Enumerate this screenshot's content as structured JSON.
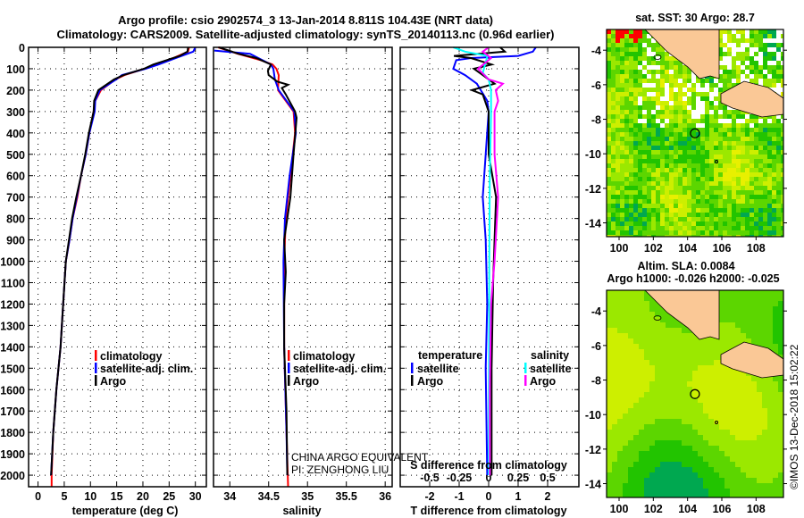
{
  "title": {
    "line1": "Argo profile: csio 2902574_3 13-Jan-2014 8.811S 104.43E (NRT data)",
    "line2": "Climatology: CARS2009. Satellite-adjusted climatology: synTS_20140113.nc (0.96d earlier)"
  },
  "depth_axis": {
    "ticks": [
      0,
      100,
      200,
      300,
      400,
      500,
      600,
      700,
      800,
      900,
      1000,
      1100,
      1200,
      1300,
      1400,
      1500,
      1600,
      1700,
      1800,
      1900,
      2000
    ],
    "ylim": [
      0,
      2054
    ]
  },
  "chart_data": [
    {
      "type": "line",
      "id": "temperature",
      "xlabel": "temperature (deg C)",
      "ylabel": "depth",
      "xlim": [
        -1.8,
        32.1
      ],
      "xticks": [
        0,
        5,
        10,
        15,
        20,
        25,
        30
      ],
      "xtick_labels": [
        "0",
        "5",
        "10",
        "15",
        "20",
        "25",
        "30"
      ],
      "grid": true,
      "legend": [
        {
          "label": "climatology",
          "color": "#ff0000"
        },
        {
          "label": "satellite-adj. clim.",
          "color": "#0000ff"
        },
        {
          "label": "Argo",
          "color": "#000000"
        }
      ],
      "series": [
        {
          "name": "climatology",
          "color": "#ff0000",
          "points": [
            [
              0,
              28.8
            ],
            [
              20,
              28.6
            ],
            [
              50,
              25.8
            ],
            [
              80,
              22.5
            ],
            [
              100,
              20.3
            ],
            [
              130,
              16.5
            ],
            [
              150,
              14.8
            ],
            [
              200,
              12.0
            ],
            [
              250,
              10.9
            ],
            [
              300,
              10.6
            ],
            [
              400,
              9.8
            ],
            [
              500,
              9.1
            ],
            [
              600,
              8.2
            ],
            [
              700,
              7.5
            ],
            [
              800,
              6.6
            ],
            [
              900,
              6.0
            ],
            [
              1000,
              5.3
            ],
            [
              1200,
              4.8
            ],
            [
              1400,
              4.3
            ],
            [
              1600,
              3.5
            ],
            [
              1800,
              2.9
            ],
            [
              2000,
              2.6
            ],
            [
              2054,
              2.6
            ]
          ]
        },
        {
          "name": "satellite-adj. clim.",
          "color": "#0000ff",
          "points": [
            [
              0,
              30.0
            ],
            [
              20,
              29.6
            ],
            [
              50,
              26.3
            ],
            [
              80,
              23.0
            ],
            [
              100,
              20.5
            ],
            [
              130,
              16.0
            ],
            [
              150,
              14.9
            ],
            [
              200,
              11.8
            ],
            [
              250,
              10.9
            ],
            [
              300,
              10.8
            ],
            [
              400,
              9.8
            ],
            [
              500,
              9.1
            ],
            [
              600,
              8.2
            ],
            [
              700,
              7.4
            ],
            [
              800,
              6.6
            ],
            [
              900,
              6.0
            ],
            [
              1000,
              5.3
            ],
            [
              1200,
              4.8
            ],
            [
              1400,
              4.3
            ],
            [
              1600,
              3.5
            ],
            [
              1800,
              2.9
            ],
            [
              2000,
              2.5
            ]
          ]
        },
        {
          "name": "Argo",
          "color": "#000000",
          "points": [
            [
              0,
              28.6
            ],
            [
              20,
              28.5
            ],
            [
              40,
              27.0
            ],
            [
              60,
              24.5
            ],
            [
              80,
              22.0
            ],
            [
              100,
              20.2
            ],
            [
              130,
              16.3
            ],
            [
              150,
              14.5
            ],
            [
              200,
              11.5
            ],
            [
              250,
              10.7
            ],
            [
              300,
              10.6
            ],
            [
              400,
              9.7
            ],
            [
              500,
              9.0
            ],
            [
              600,
              8.2
            ],
            [
              700,
              7.3
            ],
            [
              800,
              6.5
            ],
            [
              900,
              5.9
            ],
            [
              1000,
              5.3
            ],
            [
              1200,
              4.8
            ],
            [
              1400,
              4.3
            ],
            [
              1600,
              3.5
            ],
            [
              1800,
              2.9
            ],
            [
              2000,
              2.5
            ]
          ]
        }
      ]
    },
    {
      "type": "line",
      "id": "salinity",
      "xlabel": "salinity",
      "ylabel": "depth",
      "xlim": [
        33.79,
        36.09
      ],
      "xticks": [
        34,
        34.5,
        35,
        35.5,
        36
      ],
      "xtick_labels": [
        "34",
        "34.5",
        "35",
        "35.5",
        "36"
      ],
      "grid": true,
      "legend": [
        {
          "label": "climatology",
          "color": "#ff0000"
        },
        {
          "label": "satellite-adj. clim.",
          "color": "#0000ff"
        },
        {
          "label": "Argo",
          "color": "#000000"
        }
      ],
      "annotation": [
        "CHINA ARGO EQUIVALENT",
        "PI: ZENGHONG LIU"
      ],
      "series": [
        {
          "name": "climatology",
          "color": "#ff0000",
          "points": [
            [
              0,
              33.85
            ],
            [
              30,
              34.1
            ],
            [
              60,
              34.4
            ],
            [
              80,
              34.55
            ],
            [
              100,
              34.6
            ],
            [
              130,
              34.63
            ],
            [
              200,
              34.62
            ],
            [
              250,
              34.72
            ],
            [
              300,
              34.82
            ],
            [
              400,
              34.84
            ],
            [
              600,
              34.78
            ],
            [
              800,
              34.72
            ],
            [
              1000,
              34.7
            ],
            [
              1400,
              34.7
            ],
            [
              1800,
              34.73
            ],
            [
              2054,
              34.75
            ]
          ]
        },
        {
          "name": "satellite-adj. clim.",
          "color": "#0000ff",
          "points": [
            [
              15,
              33.8
            ],
            [
              30,
              34.26
            ],
            [
              60,
              34.42
            ],
            [
              80,
              34.53
            ],
            [
              100,
              34.56
            ],
            [
              150,
              34.58
            ],
            [
              200,
              34.63
            ],
            [
              250,
              34.73
            ],
            [
              300,
              34.83
            ],
            [
              400,
              34.85
            ],
            [
              600,
              34.77
            ],
            [
              800,
              34.71
            ],
            [
              1000,
              34.69
            ],
            [
              1400,
              34.7
            ],
            [
              1800,
              34.73
            ],
            [
              2000,
              34.74
            ]
          ]
        },
        {
          "name": "Argo",
          "color": "#000000",
          "points": [
            [
              0,
              33.86
            ],
            [
              30,
              34.11
            ],
            [
              50,
              34.34
            ],
            [
              80,
              34.53
            ],
            [
              110,
              34.49
            ],
            [
              130,
              34.5
            ],
            [
              160,
              34.61
            ],
            [
              175,
              34.75
            ],
            [
              190,
              34.67
            ],
            [
              220,
              34.72
            ],
            [
              300,
              34.84
            ],
            [
              330,
              34.86
            ],
            [
              500,
              34.82
            ],
            [
              700,
              34.78
            ],
            [
              900,
              34.7
            ],
            [
              1050,
              34.72
            ],
            [
              1200,
              34.7
            ],
            [
              1400,
              34.7
            ],
            [
              1700,
              34.73
            ],
            [
              2000,
              34.74
            ]
          ]
        }
      ]
    },
    {
      "type": "line",
      "id": "differences",
      "xlabel": "T difference from climatology",
      "x2label": "S difference from climatology",
      "ylabel": "depth",
      "xlim": [
        -3.0,
        3.06
      ],
      "x2lim": [
        -0.75,
        0.765
      ],
      "xticks": [
        -2,
        -1,
        0,
        1,
        2
      ],
      "xtick_labels": [
        "-2",
        "-1",
        "0",
        "1",
        "2"
      ],
      "x2ticks": [
        -0.5,
        -0.25,
        0,
        0.25,
        0.5
      ],
      "x2tick_labels": [
        "-0.5",
        "-0.25",
        "0",
        "0.25",
        "0.5"
      ],
      "grid": true,
      "legend": {
        "temperature_title": "temperature",
        "salinity_title": "salinity",
        "temperature": [
          {
            "label": "satellite",
            "color": "#0000ff"
          },
          {
            "label": "Argo",
            "color": "#000000"
          }
        ],
        "salinity": [
          {
            "label": "satellite",
            "color": "#00ffff"
          },
          {
            "label": "Argo",
            "color": "#ff00ff"
          }
        ]
      },
      "series": [
        {
          "name": "temperature satellite",
          "axis": "T",
          "color": "#0000ff",
          "points": [
            [
              0,
              1.6
            ],
            [
              20,
              1.5
            ],
            [
              40,
              1.0
            ],
            [
              50,
              -0.6
            ],
            [
              60,
              -1.1
            ],
            [
              100,
              -1.2
            ],
            [
              130,
              -0.8
            ],
            [
              170,
              -0.4
            ],
            [
              250,
              -0.05
            ],
            [
              300,
              0
            ],
            [
              500,
              -0.1
            ],
            [
              700,
              -0.2
            ],
            [
              900,
              -0.1
            ],
            [
              1200,
              -0.05
            ],
            [
              1500,
              -0.1
            ],
            [
              2000,
              -0.05
            ]
          ]
        },
        {
          "name": "temperature Argo",
          "axis": "T",
          "color": "#000000",
          "points": [
            [
              0,
              0.39
            ],
            [
              20,
              0.55
            ],
            [
              40,
              -1.18
            ],
            [
              50,
              -0.6
            ],
            [
              80,
              0.1
            ],
            [
              100,
              -0.5
            ],
            [
              130,
              -0.2
            ],
            [
              170,
              0.2
            ],
            [
              200,
              -0.57
            ],
            [
              220,
              -0.2
            ],
            [
              300,
              0
            ],
            [
              500,
              0
            ],
            [
              700,
              0.25
            ],
            [
              900,
              0.2
            ],
            [
              1100,
              0.15
            ],
            [
              1500,
              0.1
            ],
            [
              2000,
              0.1
            ]
          ]
        },
        {
          "name": "salinity satellite",
          "axis": "S",
          "color": "#00ffff",
          "points": [
            [
              0,
              -0.3
            ],
            [
              20,
              -0.2
            ],
            [
              40,
              -0.01
            ],
            [
              80,
              -0.03
            ],
            [
              120,
              -0.05
            ],
            [
              150,
              0
            ],
            [
              200,
              0.02
            ],
            [
              300,
              0.02
            ],
            [
              600,
              0.01
            ],
            [
              1000,
              0.005
            ],
            [
              2000,
              0
            ]
          ]
        },
        {
          "name": "salinity Argo",
          "axis": "S",
          "color": "#ff00ff",
          "points": [
            [
              0,
              0
            ],
            [
              20,
              -0.05
            ],
            [
              50,
              0.02
            ],
            [
              100,
              -0.09
            ],
            [
              150,
              0
            ],
            [
              170,
              0.12
            ],
            [
              200,
              0.06
            ],
            [
              250,
              0.08
            ],
            [
              300,
              0.05
            ],
            [
              500,
              0.05
            ],
            [
              700,
              0.08
            ],
            [
              1000,
              0.05
            ],
            [
              1200,
              0.02
            ],
            [
              1600,
              0.01
            ],
            [
              2000,
              0.01
            ]
          ]
        }
      ]
    }
  ],
  "maps": {
    "sst": {
      "title": "sat. SST: 30 Argo: 28.7"
    },
    "sla": {
      "title1": "Altim. SLA: 0.0084",
      "title2": "Argo h1000: -0.026 h2000: -0.025"
    },
    "lon_ticks": [
      100,
      102,
      104,
      106,
      108
    ],
    "lon_labels": [
      "100",
      "102",
      "104",
      "106",
      "108"
    ],
    "lat_ticks": [
      -4,
      -6,
      -8,
      -10,
      -12,
      -14
    ],
    "lat_labels": [
      "-4",
      "-6",
      "-8",
      "-10",
      "-12",
      "-14"
    ],
    "lon_range": [
      99.27,
      109.6
    ],
    "lat_range": [
      -2.8,
      -14.8
    ],
    "argo_position": {
      "lon": 104.43,
      "lat": -8.811
    },
    "land_color": "#fac896"
  },
  "footer": {
    "stamp": "©IMOS 13-Dec-2018 15:02:22"
  }
}
